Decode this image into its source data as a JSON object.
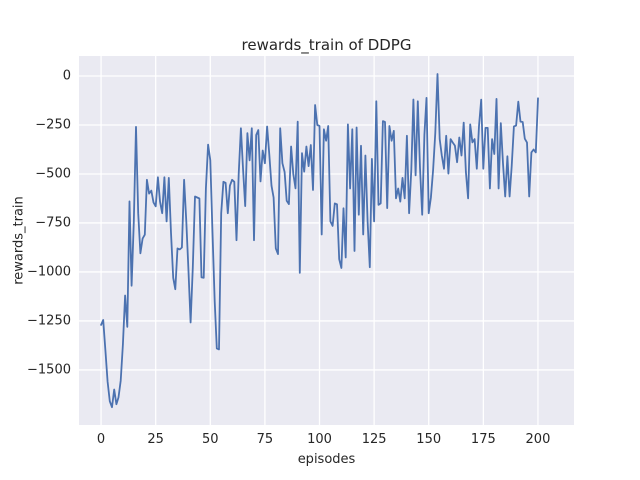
{
  "chart_data": {
    "type": "line",
    "title": "rewards_train of DDPG",
    "xlabel": "episodes",
    "ylabel": "rewards_train",
    "x_ticks": [
      0,
      25,
      50,
      75,
      100,
      125,
      150,
      175,
      200
    ],
    "y_ticks": [
      0,
      -250,
      -500,
      -750,
      -1000,
      -1250,
      -1500
    ],
    "xlim": [
      -10.1,
      216.5
    ],
    "ylim": [
      -1781,
      102
    ],
    "grid": true,
    "legend": null,
    "style": {
      "axes_background": "#eaeaf2",
      "grid_color": "#ffffff",
      "line_color": "#4c72b0",
      "text_color": "#262626",
      "figure_background": "#ffffff"
    },
    "series": [
      {
        "name": "rewards_train",
        "x_start": 0,
        "x_step": 1,
        "values": [
          -1270,
          -1245,
          -1400,
          -1560,
          -1660,
          -1690,
          -1600,
          -1675,
          -1640,
          -1555,
          -1370,
          -1120,
          -1280,
          -640,
          -1070,
          -745,
          -260,
          -700,
          -905,
          -830,
          -810,
          -530,
          -600,
          -585,
          -645,
          -665,
          -517,
          -640,
          -700,
          -517,
          -742,
          -520,
          -800,
          -1030,
          -1088,
          -880,
          -885,
          -875,
          -530,
          -742,
          -985,
          -1258,
          -977,
          -615,
          -620,
          -625,
          -1028,
          -1030,
          -573,
          -350,
          -430,
          -800,
          -1150,
          -1390,
          -1395,
          -700,
          -540,
          -545,
          -700,
          -560,
          -530,
          -540,
          -838,
          -500,
          -267,
          -480,
          -664,
          -292,
          -430,
          -267,
          -838,
          -301,
          -276,
          -538,
          -380,
          -445,
          -258,
          -400,
          -560,
          -620,
          -880,
          -909,
          -267,
          -445,
          -490,
          -637,
          -654,
          -360,
          -500,
          -573,
          -233,
          -1005,
          -394,
          -488,
          -360,
          -460,
          -352,
          -582,
          -148,
          -250,
          -255,
          -809,
          -272,
          -330,
          -255,
          -742,
          -765,
          -650,
          -655,
          -935,
          -980,
          -675,
          -926,
          -247,
          -574,
          -272,
          -893,
          -263,
          -708,
          -356,
          -809,
          -406,
          -742,
          -976,
          -423,
          -742,
          -129,
          -658,
          -650,
          -230,
          -235,
          -674,
          -255,
          -330,
          -280,
          -624,
          -574,
          -641,
          -520,
          -624,
          -305,
          -700,
          -480,
          -120,
          -507,
          -129,
          -470,
          -708,
          -300,
          -112,
          -700,
          -620,
          -480,
          -290,
          10,
          -322,
          -406,
          -473,
          -305,
          -498,
          -322,
          -340,
          -355,
          -440,
          -314,
          -406,
          -238,
          -490,
          -624,
          -247,
          -339,
          -322,
          -473,
          -255,
          -121,
          -473,
          -265,
          -265,
          -574,
          -322,
          -398,
          -117,
          -574,
          -241,
          -447,
          -615,
          -410,
          -615,
          -460,
          -258,
          -253,
          -131,
          -233,
          -235,
          -320,
          -340,
          -615,
          -390,
          -375,
          -390,
          -114
        ]
      }
    ]
  }
}
